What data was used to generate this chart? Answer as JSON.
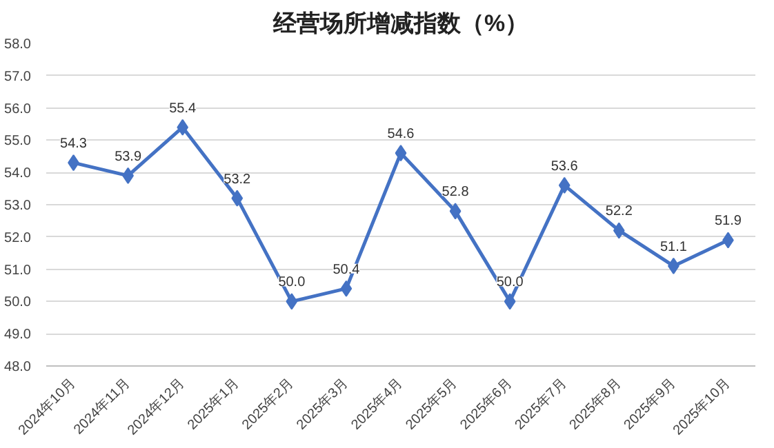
{
  "chart_data": {
    "type": "line",
    "title": "经营场所增减指数（%）",
    "categories": [
      "2024年10月",
      "2024年11月",
      "2024年12月",
      "2025年1月",
      "2025年2月",
      "2025年3月",
      "2025年4月",
      "2025年5月",
      "2025年6月",
      "2025年7月",
      "2025年8月",
      "2025年9月",
      "2025年10月"
    ],
    "series": [
      {
        "color": "#4472c4",
        "values": [
          54.3,
          53.9,
          55.4,
          53.2,
          50.0,
          50.4,
          54.6,
          52.8,
          50.0,
          53.6,
          52.2,
          51.1,
          51.9
        ],
        "value_labels": [
          "54.3",
          "53.9",
          "55.4",
          "53.2",
          "50.0",
          "50.4",
          "54.6",
          "52.8",
          "50.0",
          "53.6",
          "52.2",
          "51.1",
          "51.9"
        ]
      }
    ],
    "ylim": [
      48,
      58
    ],
    "yticks": [
      {
        "value": 48,
        "label": "48.0"
      },
      {
        "value": 49,
        "label": "49.0"
      },
      {
        "value": 50,
        "label": "50.0"
      },
      {
        "value": 51,
        "label": "51.0"
      },
      {
        "value": 52,
        "label": "52.0"
      },
      {
        "value": 53,
        "label": "53.0"
      },
      {
        "value": 54,
        "label": "54.0"
      },
      {
        "value": 55,
        "label": "55.0"
      },
      {
        "value": 56,
        "label": "56.0"
      },
      {
        "value": 57,
        "label": "57.0"
      },
      {
        "value": 58,
        "label": "58.0"
      }
    ],
    "grid": "y",
    "marker": "diamond",
    "line_style": "solid"
  }
}
